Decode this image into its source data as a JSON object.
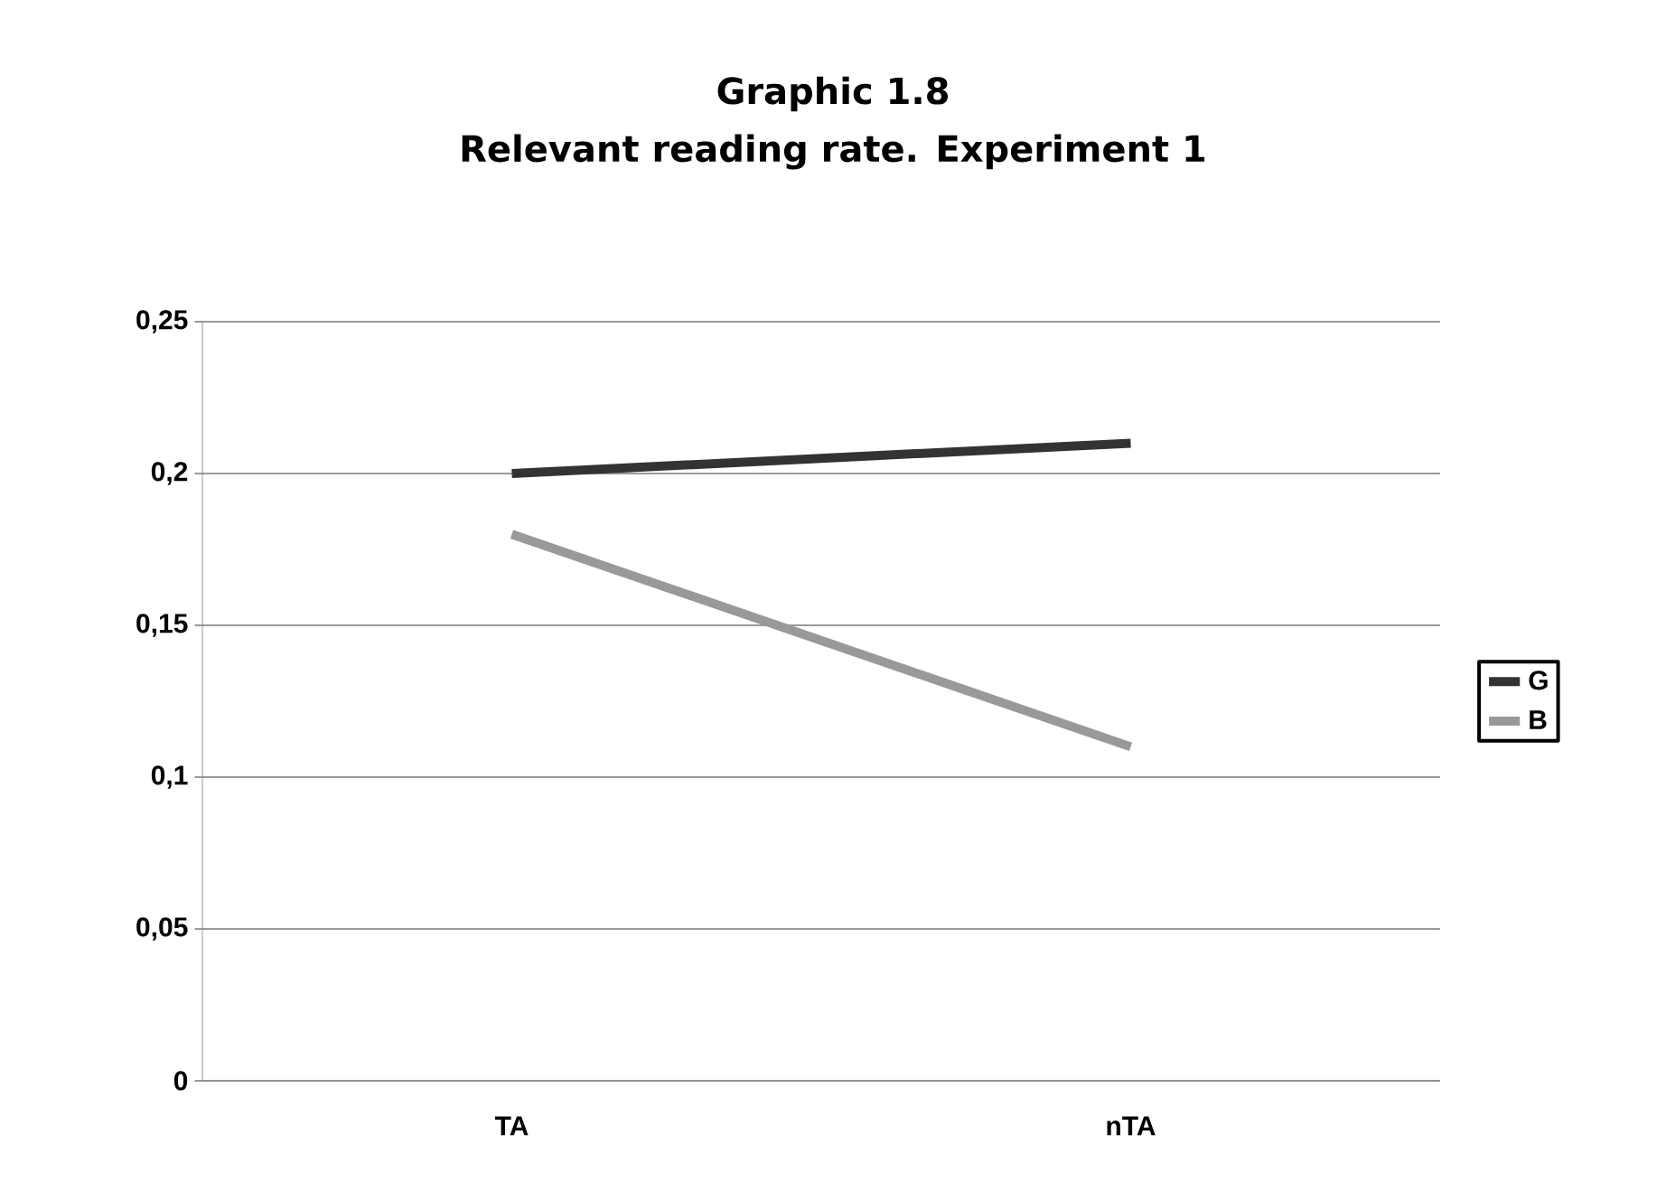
{
  "chart_data": {
    "type": "line",
    "title": "Graphic 1.8",
    "subtitle": "Relevant reading rate. Experiment 1",
    "categories": [
      "TA",
      "nTA"
    ],
    "series": [
      {
        "name": "G",
        "color": "#333333",
        "values": [
          0.2,
          0.21
        ]
      },
      {
        "name": "B",
        "color": "#999999",
        "values": [
          0.18,
          0.11
        ]
      }
    ],
    "ylim": [
      0,
      0.25
    ],
    "yticks": [
      {
        "value": 0,
        "label": "0"
      },
      {
        "value": 0.05,
        "label": "0,05"
      },
      {
        "value": 0.1,
        "label": "0,1"
      },
      {
        "value": 0.15,
        "label": "0,15"
      },
      {
        "value": 0.2,
        "label": "0,2"
      },
      {
        "value": 0.25,
        "label": "0,25"
      }
    ],
    "grid": "y",
    "legend": "right",
    "marker": "none",
    "line_style": "solid"
  }
}
